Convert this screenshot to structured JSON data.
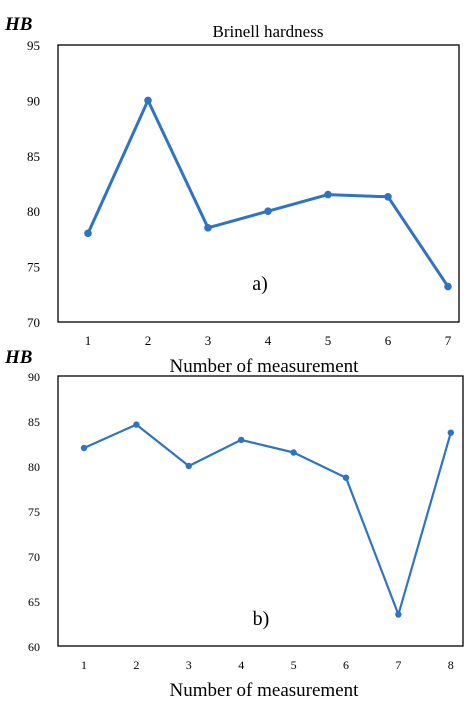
{
  "chart_data": [
    {
      "type": "line",
      "panel_label": "a)",
      "title": "Brinell hardness",
      "ylabel": "HB",
      "xlabel": "Number of measurement",
      "x": [
        1,
        2,
        3,
        4,
        5,
        6,
        7
      ],
      "x_tick_labels": [
        "1",
        "2",
        "3",
        "4",
        "5",
        "6",
        "7"
      ],
      "ylim": [
        70,
        95
      ],
      "y_ticks": [
        70,
        75,
        80,
        85,
        90,
        95
      ],
      "y_tick_labels": [
        "70",
        "75",
        "80",
        "85",
        "90",
        "95"
      ],
      "series": [
        {
          "values": [
            78,
            90,
            78.5,
            80,
            81.5,
            81.3,
            73.2
          ]
        }
      ],
      "grid": false,
      "color": "#2f74c0"
    },
    {
      "type": "line",
      "panel_label": "b)",
      "title": "",
      "ylabel": "HB",
      "xlabel": "Number of measurement",
      "x": [
        1,
        2,
        3,
        4,
        5,
        6,
        7,
        8
      ],
      "x_tick_labels": [
        "1",
        "2",
        "3",
        "4",
        "5",
        "6",
        "7",
        "8"
      ],
      "ylim": [
        60,
        90
      ],
      "y_ticks": [
        60,
        65,
        70,
        75,
        80,
        85,
        90
      ],
      "y_tick_labels": [
        "60",
        "65",
        "70",
        "75",
        "80",
        "85",
        "90"
      ],
      "series": [
        {
          "values": [
            82,
            84.6,
            80,
            82.9,
            81.5,
            78.7,
            63.5,
            83.7
          ]
        }
      ],
      "grid": false,
      "color": "#2f74c0"
    }
  ]
}
